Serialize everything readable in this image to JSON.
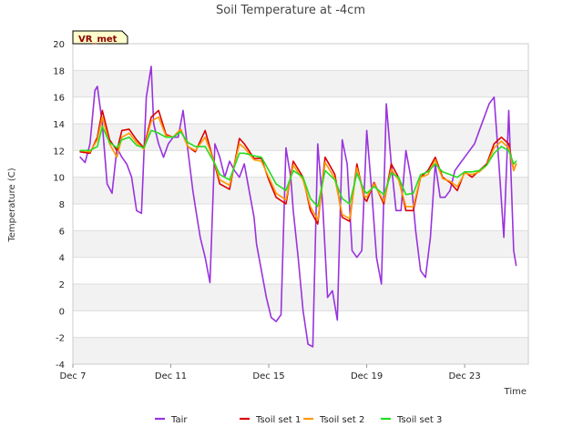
{
  "chart_data": {
    "type": "line",
    "title": "Soil Temperature at -4cm",
    "xlabel": "Time",
    "ylabel": "Temperature (C)",
    "station_badge": "VR_met",
    "xlim": [
      7,
      25.6
    ],
    "ylim": [
      -4,
      20
    ],
    "yticks": [
      -4,
      -2,
      0,
      2,
      4,
      6,
      8,
      10,
      12,
      14,
      16,
      18,
      20
    ],
    "xticks": [
      {
        "day": 7,
        "label": "Dec 7"
      },
      {
        "day": 11,
        "label": "Dec 11"
      },
      {
        "day": 15,
        "label": "Dec 15"
      },
      {
        "day": 19,
        "label": "Dec 19"
      },
      {
        "day": 23,
        "label": "Dec 23"
      }
    ],
    "grid": true,
    "legend_position": "bottom",
    "series": [
      {
        "name": "Tair",
        "color": "#9933dd",
        "x": [
          7.3,
          7.5,
          7.7,
          7.9,
          8.0,
          8.2,
          8.4,
          8.6,
          8.8,
          9.0,
          9.2,
          9.4,
          9.6,
          9.8,
          10.0,
          10.2,
          10.3,
          10.5,
          10.7,
          10.9,
          11.1,
          11.3,
          11.5,
          11.7,
          11.9,
          12.0,
          12.2,
          12.4,
          12.6,
          12.8,
          13.0,
          13.2,
          13.4,
          13.6,
          13.8,
          14.0,
          14.2,
          14.4,
          14.5,
          14.7,
          14.9,
          15.1,
          15.3,
          15.5,
          15.7,
          15.9,
          16.0,
          16.2,
          16.4,
          16.6,
          16.8,
          17.0,
          17.2,
          17.4,
          17.6,
          17.8,
          18.0,
          18.2,
          18.4,
          18.6,
          18.8,
          19.0,
          19.2,
          19.4,
          19.6,
          19.8,
          20.0,
          20.2,
          20.4,
          20.6,
          20.8,
          21.0,
          21.2,
          21.4,
          21.6,
          21.8,
          22.0,
          22.2,
          22.4,
          22.6,
          22.8,
          23.0,
          23.2,
          23.4,
          23.6,
          23.8,
          24.0,
          24.2,
          24.4,
          24.6,
          24.8,
          25.0,
          25.1
        ],
        "values": [
          11.5,
          11.1,
          12.5,
          16.5,
          16.8,
          14.0,
          9.5,
          8.8,
          12.2,
          11.5,
          11.0,
          10.0,
          7.5,
          7.3,
          16.0,
          18.3,
          14.0,
          12.5,
          11.5,
          12.5,
          13.0,
          13.0,
          15.0,
          12.0,
          9.0,
          7.8,
          5.5,
          4.0,
          2.1,
          12.5,
          11.5,
          10.0,
          11.2,
          10.5,
          10.0,
          11.0,
          9.0,
          7.0,
          5.0,
          3.0,
          1.0,
          -0.5,
          -0.8,
          -0.3,
          12.2,
          10.0,
          7.5,
          4.0,
          0.0,
          -2.5,
          -2.7,
          12.5,
          8.0,
          1.0,
          1.5,
          -0.7,
          12.8,
          11.0,
          4.5,
          4.0,
          4.5,
          13.5,
          9.0,
          4.0,
          2.0,
          15.5,
          11.0,
          7.5,
          7.5,
          12.0,
          10.0,
          6.0,
          3.0,
          2.5,
          5.5,
          11.0,
          8.5,
          8.5,
          9.0,
          10.5,
          11.0,
          11.5,
          12.0,
          12.5,
          13.5,
          14.5,
          15.5,
          16.0,
          11.0,
          5.5,
          15.0,
          4.5,
          3.4
        ]
      },
      {
        "name": "Tsoil set 1",
        "color": "#dd0000",
        "x": [
          7.3,
          7.7,
          8.0,
          8.2,
          8.5,
          8.8,
          9.0,
          9.3,
          9.6,
          9.9,
          10.2,
          10.5,
          10.8,
          11.1,
          11.4,
          11.7,
          12.0,
          12.4,
          12.8,
          13.0,
          13.4,
          13.8,
          14.0,
          14.4,
          14.7,
          15.0,
          15.3,
          15.7,
          16.0,
          16.4,
          16.7,
          17.0,
          17.3,
          17.7,
          18.0,
          18.3,
          18.6,
          18.9,
          19.0,
          19.3,
          19.7,
          20.0,
          20.3,
          20.6,
          20.9,
          21.2,
          21.5,
          21.8,
          22.1,
          22.4,
          22.7,
          23.0,
          23.3,
          23.6,
          23.9,
          24.2,
          24.5,
          24.8,
          25.0,
          25.1
        ],
        "values": [
          11.9,
          11.8,
          13.0,
          15.0,
          12.8,
          12.0,
          13.5,
          13.6,
          12.8,
          12.2,
          14.5,
          15.0,
          13.2,
          13.0,
          13.6,
          12.3,
          11.9,
          13.5,
          10.9,
          9.5,
          9.1,
          12.9,
          12.5,
          11.4,
          11.4,
          9.8,
          8.5,
          8.0,
          11.2,
          10.0,
          7.5,
          6.5,
          11.5,
          10.2,
          7.0,
          6.7,
          11.0,
          8.4,
          8.2,
          9.6,
          8.0,
          11.0,
          10.0,
          7.5,
          7.5,
          10.0,
          10.5,
          11.5,
          10.0,
          9.6,
          9.0,
          10.4,
          10.0,
          10.5,
          11.0,
          12.5,
          13.0,
          12.5,
          10.5,
          11.0
        ]
      },
      {
        "name": "Tsoil set 2",
        "color": "#ff9900",
        "x": [
          7.3,
          7.7,
          8.0,
          8.2,
          8.5,
          8.8,
          9.0,
          9.3,
          9.6,
          9.9,
          10.2,
          10.5,
          10.8,
          11.1,
          11.4,
          11.7,
          12.0,
          12.4,
          12.8,
          13.0,
          13.4,
          13.8,
          14.0,
          14.4,
          14.7,
          15.0,
          15.3,
          15.7,
          16.0,
          16.4,
          16.7,
          17.0,
          17.3,
          17.7,
          18.0,
          18.3,
          18.6,
          18.9,
          19.0,
          19.3,
          19.7,
          20.0,
          20.3,
          20.6,
          20.9,
          21.2,
          21.5,
          21.8,
          22.1,
          22.4,
          22.7,
          23.0,
          23.3,
          23.6,
          23.9,
          24.2,
          24.5,
          24.8,
          25.0,
          25.1
        ],
        "values": [
          12.0,
          11.9,
          12.8,
          14.5,
          12.5,
          11.5,
          13.0,
          13.3,
          12.6,
          12.1,
          14.2,
          14.5,
          13.1,
          13.0,
          13.6,
          12.3,
          12.0,
          13.0,
          11.0,
          9.8,
          9.4,
          12.5,
          12.2,
          11.3,
          11.2,
          10.0,
          8.8,
          8.3,
          10.9,
          9.8,
          7.8,
          6.8,
          11.1,
          9.9,
          7.2,
          6.9,
          10.7,
          8.6,
          8.5,
          9.5,
          8.2,
          10.6,
          9.8,
          7.8,
          7.8,
          10.0,
          10.2,
          11.3,
          9.9,
          9.7,
          9.3,
          10.3,
          10.2,
          10.4,
          10.9,
          12.2,
          12.7,
          12.2,
          10.5,
          11.0
        ]
      },
      {
        "name": "Tsoil set 3",
        "color": "#22dd22",
        "x": [
          7.3,
          7.7,
          8.0,
          8.2,
          8.5,
          8.8,
          9.0,
          9.3,
          9.6,
          9.9,
          10.2,
          10.5,
          10.8,
          11.1,
          11.4,
          11.7,
          12.0,
          12.4,
          12.8,
          13.0,
          13.4,
          13.8,
          14.0,
          14.4,
          14.7,
          15.0,
          15.3,
          15.7,
          16.0,
          16.4,
          16.7,
          17.0,
          17.3,
          17.7,
          18.0,
          18.3,
          18.6,
          18.9,
          19.0,
          19.3,
          19.7,
          20.0,
          20.3,
          20.6,
          20.9,
          21.2,
          21.5,
          21.8,
          22.1,
          22.4,
          22.7,
          23.0,
          23.3,
          23.6,
          23.9,
          24.2,
          24.5,
          24.8,
          25.0,
          25.1
        ],
        "values": [
          12.0,
          12.0,
          12.3,
          13.8,
          12.6,
          12.2,
          12.8,
          13.0,
          12.4,
          12.2,
          13.5,
          13.3,
          13.0,
          13.0,
          13.4,
          12.6,
          12.3,
          12.3,
          11.0,
          10.2,
          9.8,
          11.8,
          11.8,
          11.6,
          11.5,
          10.5,
          9.5,
          9.0,
          10.5,
          10.0,
          8.4,
          7.8,
          10.5,
          9.8,
          8.4,
          8.0,
          10.3,
          9.0,
          8.8,
          9.3,
          8.7,
          10.3,
          10.0,
          8.7,
          8.8,
          10.2,
          10.4,
          11.0,
          10.4,
          10.2,
          10.0,
          10.4,
          10.4,
          10.5,
          10.9,
          11.8,
          12.3,
          12.0,
          11.0,
          11.2
        ]
      }
    ]
  }
}
